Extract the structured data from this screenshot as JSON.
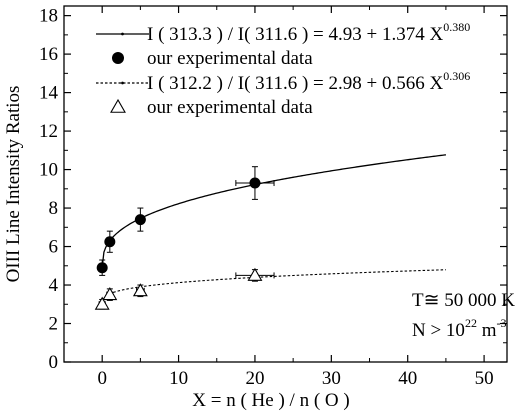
{
  "chart_data": {
    "type": "scatter",
    "xlabel": "X = n ( He ) / n ( O )",
    "ylabel": "OIII  Line Intensity Ratios",
    "xlim": [
      -5,
      53
    ],
    "ylim": [
      0,
      18.5
    ],
    "xticks": [
      0,
      10,
      20,
      30,
      40,
      50
    ],
    "yticks": [
      0,
      2,
      4,
      6,
      8,
      10,
      12,
      14,
      16,
      18
    ],
    "grid": false,
    "legend_position": "top-left",
    "series": [
      {
        "name": "I ( 313.3 ) / I( 311.6 ) = 4.93 + 1.374 X",
        "name_exponent": "0.380",
        "kind": "fit",
        "line_style": "solid",
        "fit": {
          "a": 4.93,
          "b": 1.374,
          "p": 0.38
        },
        "x_range": [
          0,
          45
        ]
      },
      {
        "name": "our experimental data",
        "kind": "points",
        "marker": "filled-circle",
        "points": [
          {
            "x": 0,
            "y": 4.9,
            "yerr": 0.4,
            "xerr": 0.4
          },
          {
            "x": 1,
            "y": 6.25,
            "yerr": 0.55,
            "xerr": 0.4
          },
          {
            "x": 5,
            "y": 7.4,
            "yerr": 0.6,
            "xerr": 0.5
          },
          {
            "x": 20,
            "y": 9.3,
            "yerr": 0.85,
            "xerr": 2.5
          }
        ]
      },
      {
        "name": "I ( 312.2 ) / I( 311.6 ) = 2.98 + 0.566 X",
        "name_exponent": "0.306",
        "kind": "fit",
        "line_style": "dotted",
        "fit": {
          "a": 2.98,
          "b": 0.566,
          "p": 0.306
        },
        "x_range": [
          0,
          45
        ]
      },
      {
        "name": "our experimental data",
        "kind": "points",
        "marker": "open-triangle",
        "points": [
          {
            "x": 0,
            "y": 3.0,
            "yerr": 0.25,
            "xerr": 0.4
          },
          {
            "x": 1,
            "y": 3.5,
            "yerr": 0.3,
            "xerr": 0.4
          },
          {
            "x": 5,
            "y": 3.7,
            "yerr": 0.3,
            "xerr": 0.5
          },
          {
            "x": 20,
            "y": 4.5,
            "yerr": 0.3,
            "xerr": 2.5
          }
        ]
      }
    ],
    "annotations": [
      {
        "text": "T≅  50 000 K"
      },
      {
        "text": "N > 10",
        "exponent": "22",
        "suffix": " m",
        "suffix_exponent": "-3"
      }
    ]
  }
}
